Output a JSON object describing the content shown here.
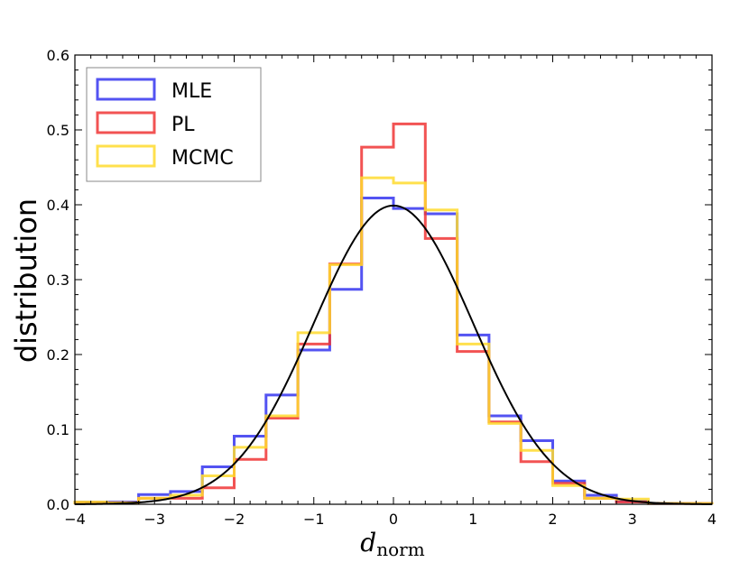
{
  "chart_data": {
    "type": "histogram",
    "title": "",
    "xlabel": "d",
    "xlabel_subscript": "norm",
    "ylabel": "distribution",
    "xlim": [
      -4,
      4
    ],
    "ylim": [
      0,
      0.6
    ],
    "xticks": [
      -4,
      -3,
      -2,
      -1,
      0,
      1,
      2,
      3,
      4
    ],
    "xtick_labels": [
      "−4",
      "−3",
      "−2",
      "−1",
      "0",
      "1",
      "2",
      "3",
      "4"
    ],
    "yticks": [
      0.0,
      0.1,
      0.2,
      0.3,
      0.4,
      0.5,
      0.6
    ],
    "ytick_labels": [
      "0.0",
      "0.1",
      "0.2",
      "0.3",
      "0.4",
      "0.5",
      "0.6"
    ],
    "legend_position": "top-left",
    "bin_edges": [
      -4.0,
      -3.6,
      -3.2,
      -2.8,
      -2.4,
      -2.0,
      -1.6,
      -1.2,
      -0.8,
      -0.4,
      0.0,
      0.4,
      0.8,
      1.2,
      1.6,
      2.0,
      2.4,
      2.8,
      3.2,
      3.6,
      4.0
    ],
    "series": [
      {
        "name": "MLE",
        "color": "#3535f0",
        "values": [
          0.003,
          0.003,
          0.013,
          0.017,
          0.05,
          0.091,
          0.146,
          0.206,
          0.287,
          0.409,
          0.395,
          0.388,
          0.226,
          0.118,
          0.085,
          0.031,
          0.012,
          0.004,
          0.001,
          0.001
        ]
      },
      {
        "name": "PL",
        "color": "#f03535",
        "values": [
          0.002,
          0.002,
          0.008,
          0.008,
          0.022,
          0.06,
          0.115,
          0.214,
          0.321,
          0.477,
          0.508,
          0.355,
          0.204,
          0.11,
          0.057,
          0.028,
          0.008,
          0.003,
          0.001,
          0.001
        ]
      },
      {
        "name": "MCMC",
        "color": "#ffdb2e",
        "values": [
          0.003,
          0.002,
          0.008,
          0.012,
          0.038,
          0.076,
          0.118,
          0.229,
          0.32,
          0.436,
          0.429,
          0.393,
          0.214,
          0.108,
          0.072,
          0.025,
          0.008,
          0.007,
          0.001,
          0.001
        ]
      }
    ],
    "reference_curve": {
      "name": "standard normal pdf",
      "color": "#000000",
      "mean": 0,
      "std": 1
    }
  }
}
